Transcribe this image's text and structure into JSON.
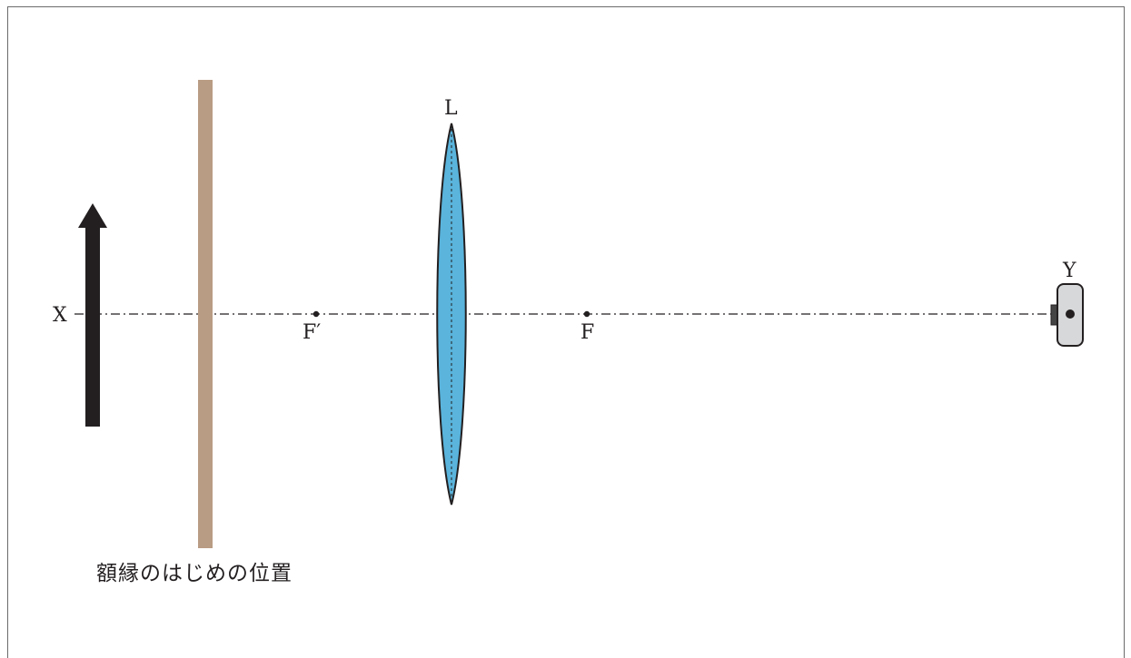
{
  "labels": {
    "object": "X",
    "camera": "Y",
    "lens": "L",
    "focal_left": "F′",
    "focal_right": "F",
    "frame_caption": "額縁のはじめの位置"
  },
  "colors": {
    "line": "#231f20",
    "lens_fill": "#5ab4dc",
    "frame_fill": "#b99c84",
    "camera_fill": "#d7d8d9",
    "object_arrow": "#231f20"
  },
  "icons": {
    "object": "upward-arrow-icon",
    "camera": "camera-icon"
  }
}
